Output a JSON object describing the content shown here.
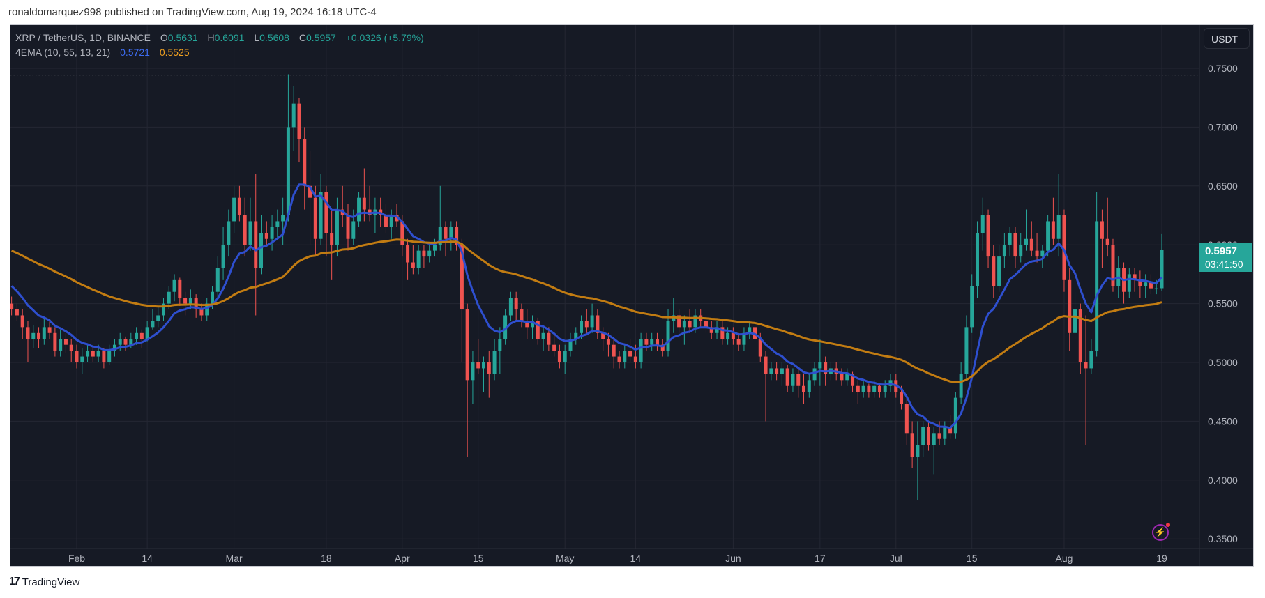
{
  "header": {
    "published": "ronaldomarquez998 published on TradingView.com, Aug 19, 2024 16:18 UTC-4"
  },
  "legend": {
    "symbol": "XRP / TetherUS, 1D, BINANCE",
    "o_label": "O",
    "o": "0.5631",
    "h_label": "H",
    "h": "0.6091",
    "l_label": "L",
    "l": "0.5608",
    "c_label": "C",
    "c": "0.5957",
    "change": "+0.0326 (+5.79%)",
    "ema_name": "4EMA (10, 55, 13, 21)",
    "ema_fast": "0.5721",
    "ema_slow": "0.5525"
  },
  "price_axis": {
    "currency": "USDT",
    "last_price": "0.5957",
    "countdown": "03:41:50"
  },
  "footer": {
    "brand": "TradingView"
  },
  "colors": {
    "up": "#26a69a",
    "down": "#ef5350",
    "ema_fast": "#2e4fcf",
    "ema_slow": "#c27c12",
    "background": "#161a25",
    "grid": "#242733"
  },
  "chart_data": {
    "type": "candlestick",
    "title": "XRP / TetherUS, 1D, BINANCE",
    "start_date": "2024-01-20",
    "ylim": [
      0.34,
      0.765
    ],
    "y_ticks": [
      "0.7500",
      "0.7000",
      "0.6500",
      "0.6000",
      "0.5500",
      "0.5000",
      "0.4500",
      "0.4000",
      "0.3500"
    ],
    "x_ticks": [
      {
        "label": "Feb",
        "date": "2024-02-01"
      },
      {
        "label": "14",
        "date": "2024-02-14"
      },
      {
        "label": "Mar",
        "date": "2024-03-01"
      },
      {
        "label": "18",
        "date": "2024-03-18"
      },
      {
        "label": "Apr",
        "date": "2024-04-01"
      },
      {
        "label": "15",
        "date": "2024-04-15"
      },
      {
        "label": "May",
        "date": "2024-05-01"
      },
      {
        "label": "14",
        "date": "2024-05-14"
      },
      {
        "label": "Jun",
        "date": "2024-06-01"
      },
      {
        "label": "17",
        "date": "2024-06-17"
      },
      {
        "label": "Jul",
        "date": "2024-07-01"
      },
      {
        "label": "15",
        "date": "2024-07-15"
      },
      {
        "label": "Aug",
        "date": "2024-08-01"
      },
      {
        "label": "19",
        "date": "2024-08-19"
      }
    ],
    "range_lines": [
      0.7443,
      0.383
    ],
    "ema_periods": [
      10,
      55
    ],
    "grid": true,
    "ohlc": [
      [
        0.55,
        0.556,
        0.54,
        0.545
      ],
      [
        0.545,
        0.55,
        0.535,
        0.54
      ],
      [
        0.54,
        0.545,
        0.52,
        0.53
      ],
      [
        0.53,
        0.535,
        0.5,
        0.52
      ],
      [
        0.52,
        0.532,
        0.512,
        0.525
      ],
      [
        0.525,
        0.53,
        0.512,
        0.52
      ],
      [
        0.52,
        0.538,
        0.515,
        0.53
      ],
      [
        0.53,
        0.535,
        0.52,
        0.525
      ],
      [
        0.525,
        0.53,
        0.505,
        0.51
      ],
      [
        0.51,
        0.528,
        0.505,
        0.52
      ],
      [
        0.52,
        0.525,
        0.508,
        0.515
      ],
      [
        0.515,
        0.52,
        0.5,
        0.51
      ],
      [
        0.51,
        0.515,
        0.495,
        0.5
      ],
      [
        0.5,
        0.512,
        0.49,
        0.505
      ],
      [
        0.505,
        0.515,
        0.5,
        0.51
      ],
      [
        0.51,
        0.514,
        0.5,
        0.505
      ],
      [
        0.505,
        0.515,
        0.5,
        0.51
      ],
      [
        0.51,
        0.512,
        0.495,
        0.5
      ],
      [
        0.5,
        0.515,
        0.498,
        0.51
      ],
      [
        0.51,
        0.52,
        0.505,
        0.515
      ],
      [
        0.515,
        0.525,
        0.51,
        0.52
      ],
      [
        0.52,
        0.522,
        0.51,
        0.515
      ],
      [
        0.515,
        0.525,
        0.512,
        0.52
      ],
      [
        0.52,
        0.53,
        0.515,
        0.525
      ],
      [
        0.525,
        0.528,
        0.512,
        0.52
      ],
      [
        0.52,
        0.535,
        0.518,
        0.53
      ],
      [
        0.53,
        0.545,
        0.528,
        0.535
      ],
      [
        0.535,
        0.548,
        0.53,
        0.54
      ],
      [
        0.54,
        0.555,
        0.535,
        0.55
      ],
      [
        0.55,
        0.565,
        0.545,
        0.56
      ],
      [
        0.56,
        0.575,
        0.552,
        0.57
      ],
      [
        0.57,
        0.572,
        0.548,
        0.555
      ],
      [
        0.555,
        0.56,
        0.54,
        0.55
      ],
      [
        0.55,
        0.562,
        0.545,
        0.555
      ],
      [
        0.555,
        0.558,
        0.538,
        0.545
      ],
      [
        0.545,
        0.55,
        0.535,
        0.54
      ],
      [
        0.54,
        0.555,
        0.535,
        0.55
      ],
      [
        0.55,
        0.565,
        0.545,
        0.56
      ],
      [
        0.56,
        0.59,
        0.555,
        0.58
      ],
      [
        0.58,
        0.615,
        0.57,
        0.6
      ],
      [
        0.6,
        0.63,
        0.59,
        0.62
      ],
      [
        0.62,
        0.65,
        0.61,
        0.64
      ],
      [
        0.64,
        0.65,
        0.62,
        0.625
      ],
      [
        0.625,
        0.64,
        0.59,
        0.6
      ],
      [
        0.6,
        0.64,
        0.595,
        0.62
      ],
      [
        0.62,
        0.66,
        0.54,
        0.58
      ],
      [
        0.58,
        0.625,
        0.575,
        0.61
      ],
      [
        0.61,
        0.62,
        0.6,
        0.605
      ],
      [
        0.605,
        0.625,
        0.595,
        0.615
      ],
      [
        0.615,
        0.63,
        0.605,
        0.62
      ],
      [
        0.62,
        0.64,
        0.6,
        0.625
      ],
      [
        0.625,
        0.745,
        0.62,
        0.7
      ],
      [
        0.7,
        0.735,
        0.68,
        0.72
      ],
      [
        0.72,
        0.725,
        0.67,
        0.69
      ],
      [
        0.69,
        0.7,
        0.63,
        0.65
      ],
      [
        0.65,
        0.68,
        0.6,
        0.64
      ],
      [
        0.64,
        0.65,
        0.59,
        0.605
      ],
      [
        0.605,
        0.66,
        0.6,
        0.645
      ],
      [
        0.645,
        0.65,
        0.59,
        0.61
      ],
      [
        0.61,
        0.63,
        0.57,
        0.6
      ],
      [
        0.6,
        0.64,
        0.59,
        0.63
      ],
      [
        0.63,
        0.65,
        0.615,
        0.625
      ],
      [
        0.625,
        0.635,
        0.595,
        0.605
      ],
      [
        0.605,
        0.63,
        0.6,
        0.62
      ],
      [
        0.62,
        0.645,
        0.615,
        0.64
      ],
      [
        0.64,
        0.665,
        0.62,
        0.63
      ],
      [
        0.63,
        0.65,
        0.62,
        0.625
      ],
      [
        0.625,
        0.64,
        0.61,
        0.63
      ],
      [
        0.63,
        0.64,
        0.615,
        0.625
      ],
      [
        0.625,
        0.635,
        0.61,
        0.615
      ],
      [
        0.615,
        0.63,
        0.605,
        0.625
      ],
      [
        0.625,
        0.635,
        0.615,
        0.62
      ],
      [
        0.62,
        0.625,
        0.59,
        0.6
      ],
      [
        0.6,
        0.605,
        0.57,
        0.585
      ],
      [
        0.585,
        0.6,
        0.575,
        0.58
      ],
      [
        0.58,
        0.6,
        0.575,
        0.595
      ],
      [
        0.595,
        0.6,
        0.58,
        0.59
      ],
      [
        0.59,
        0.6,
        0.585,
        0.595
      ],
      [
        0.595,
        0.605,
        0.59,
        0.6
      ],
      [
        0.6,
        0.65,
        0.595,
        0.615
      ],
      [
        0.615,
        0.62,
        0.59,
        0.605
      ],
      [
        0.605,
        0.62,
        0.595,
        0.615
      ],
      [
        0.615,
        0.62,
        0.595,
        0.6
      ],
      [
        0.6,
        0.605,
        0.5,
        0.545
      ],
      [
        0.545,
        0.55,
        0.42,
        0.485
      ],
      [
        0.485,
        0.51,
        0.465,
        0.5
      ],
      [
        0.5,
        0.52,
        0.49,
        0.495
      ],
      [
        0.495,
        0.505,
        0.475,
        0.5
      ],
      [
        0.5,
        0.51,
        0.47,
        0.49
      ],
      [
        0.49,
        0.52,
        0.485,
        0.51
      ],
      [
        0.51,
        0.53,
        0.49,
        0.52
      ],
      [
        0.52,
        0.545,
        0.515,
        0.54
      ],
      [
        0.54,
        0.56,
        0.535,
        0.555
      ],
      [
        0.555,
        0.56,
        0.535,
        0.545
      ],
      [
        0.545,
        0.55,
        0.53,
        0.535
      ],
      [
        0.535,
        0.545,
        0.52,
        0.53
      ],
      [
        0.53,
        0.54,
        0.52,
        0.535
      ],
      [
        0.535,
        0.538,
        0.515,
        0.52
      ],
      [
        0.52,
        0.53,
        0.51,
        0.525
      ],
      [
        0.525,
        0.53,
        0.51,
        0.515
      ],
      [
        0.515,
        0.525,
        0.505,
        0.51
      ],
      [
        0.51,
        0.515,
        0.495,
        0.5
      ],
      [
        0.5,
        0.515,
        0.49,
        0.51
      ],
      [
        0.51,
        0.525,
        0.505,
        0.52
      ],
      [
        0.52,
        0.53,
        0.515,
        0.525
      ],
      [
        0.525,
        0.54,
        0.52,
        0.535
      ],
      [
        0.535,
        0.545,
        0.525,
        0.53
      ],
      [
        0.53,
        0.55,
        0.525,
        0.54
      ],
      [
        0.54,
        0.545,
        0.52,
        0.525
      ],
      [
        0.525,
        0.53,
        0.51,
        0.52
      ],
      [
        0.52,
        0.525,
        0.505,
        0.515
      ],
      [
        0.515,
        0.52,
        0.495,
        0.505
      ],
      [
        0.505,
        0.51,
        0.495,
        0.5
      ],
      [
        0.5,
        0.515,
        0.495,
        0.51
      ],
      [
        0.51,
        0.52,
        0.5,
        0.505
      ],
      [
        0.505,
        0.515,
        0.495,
        0.5
      ],
      [
        0.5,
        0.525,
        0.495,
        0.52
      ],
      [
        0.52,
        0.525,
        0.51,
        0.515
      ],
      [
        0.515,
        0.525,
        0.51,
        0.52
      ],
      [
        0.52,
        0.525,
        0.51,
        0.515
      ],
      [
        0.515,
        0.52,
        0.505,
        0.51
      ],
      [
        0.51,
        0.545,
        0.505,
        0.535
      ],
      [
        0.535,
        0.555,
        0.525,
        0.54
      ],
      [
        0.54,
        0.545,
        0.525,
        0.53
      ],
      [
        0.53,
        0.54,
        0.515,
        0.535
      ],
      [
        0.535,
        0.545,
        0.525,
        0.53
      ],
      [
        0.53,
        0.545,
        0.525,
        0.54
      ],
      [
        0.54,
        0.545,
        0.53,
        0.535
      ],
      [
        0.535,
        0.54,
        0.525,
        0.53
      ],
      [
        0.53,
        0.535,
        0.52,
        0.525
      ],
      [
        0.525,
        0.535,
        0.52,
        0.53
      ],
      [
        0.53,
        0.535,
        0.515,
        0.52
      ],
      [
        0.52,
        0.53,
        0.515,
        0.525
      ],
      [
        0.525,
        0.53,
        0.515,
        0.52
      ],
      [
        0.52,
        0.525,
        0.51,
        0.515
      ],
      [
        0.515,
        0.53,
        0.51,
        0.525
      ],
      [
        0.525,
        0.535,
        0.52,
        0.53
      ],
      [
        0.53,
        0.535,
        0.515,
        0.52
      ],
      [
        0.52,
        0.525,
        0.5,
        0.505
      ],
      [
        0.505,
        0.51,
        0.45,
        0.49
      ],
      [
        0.49,
        0.5,
        0.485,
        0.495
      ],
      [
        0.495,
        0.5,
        0.485,
        0.49
      ],
      [
        0.49,
        0.5,
        0.48,
        0.495
      ],
      [
        0.495,
        0.498,
        0.475,
        0.48
      ],
      [
        0.48,
        0.495,
        0.475,
        0.49
      ],
      [
        0.49,
        0.495,
        0.47,
        0.48
      ],
      [
        0.48,
        0.49,
        0.465,
        0.475
      ],
      [
        0.475,
        0.49,
        0.47,
        0.485
      ],
      [
        0.485,
        0.5,
        0.48,
        0.495
      ],
      [
        0.495,
        0.52,
        0.48,
        0.5
      ],
      [
        0.5,
        0.505,
        0.48,
        0.49
      ],
      [
        0.49,
        0.5,
        0.485,
        0.495
      ],
      [
        0.495,
        0.5,
        0.485,
        0.49
      ],
      [
        0.49,
        0.495,
        0.48,
        0.485
      ],
      [
        0.485,
        0.495,
        0.48,
        0.49
      ],
      [
        0.49,
        0.492,
        0.475,
        0.48
      ],
      [
        0.48,
        0.485,
        0.465,
        0.475
      ],
      [
        0.475,
        0.485,
        0.47,
        0.48
      ],
      [
        0.48,
        0.482,
        0.47,
        0.475
      ],
      [
        0.475,
        0.485,
        0.47,
        0.48
      ],
      [
        0.48,
        0.482,
        0.47,
        0.475
      ],
      [
        0.475,
        0.485,
        0.47,
        0.48
      ],
      [
        0.48,
        0.49,
        0.475,
        0.485
      ],
      [
        0.485,
        0.49,
        0.47,
        0.475
      ],
      [
        0.475,
        0.48,
        0.46,
        0.465
      ],
      [
        0.465,
        0.47,
        0.43,
        0.44
      ],
      [
        0.44,
        0.45,
        0.41,
        0.42
      ],
      [
        0.42,
        0.45,
        0.383,
        0.43
      ],
      [
        0.43,
        0.45,
        0.42,
        0.445
      ],
      [
        0.445,
        0.45,
        0.425,
        0.43
      ],
      [
        0.43,
        0.445,
        0.405,
        0.44
      ],
      [
        0.44,
        0.45,
        0.43,
        0.435
      ],
      [
        0.435,
        0.45,
        0.43,
        0.445
      ],
      [
        0.445,
        0.455,
        0.435,
        0.44
      ],
      [
        0.44,
        0.475,
        0.435,
        0.47
      ],
      [
        0.47,
        0.5,
        0.465,
        0.49
      ],
      [
        0.49,
        0.54,
        0.485,
        0.53
      ],
      [
        0.53,
        0.575,
        0.525,
        0.565
      ],
      [
        0.565,
        0.62,
        0.555,
        0.61
      ],
      [
        0.61,
        0.64,
        0.595,
        0.625
      ],
      [
        0.625,
        0.63,
        0.58,
        0.59
      ],
      [
        0.59,
        0.6,
        0.555,
        0.565
      ],
      [
        0.565,
        0.6,
        0.56,
        0.59
      ],
      [
        0.59,
        0.61,
        0.58,
        0.6
      ],
      [
        0.6,
        0.615,
        0.59,
        0.61
      ],
      [
        0.61,
        0.615,
        0.58,
        0.59
      ],
      [
        0.59,
        0.61,
        0.585,
        0.6
      ],
      [
        0.6,
        0.63,
        0.595,
        0.605
      ],
      [
        0.605,
        0.62,
        0.59,
        0.595
      ],
      [
        0.595,
        0.61,
        0.585,
        0.59
      ],
      [
        0.59,
        0.6,
        0.58,
        0.595
      ],
      [
        0.595,
        0.625,
        0.59,
        0.62
      ],
      [
        0.62,
        0.64,
        0.6,
        0.605
      ],
      [
        0.605,
        0.66,
        0.59,
        0.625
      ],
      [
        0.625,
        0.63,
        0.56,
        0.57
      ],
      [
        0.57,
        0.58,
        0.51,
        0.525
      ],
      [
        0.525,
        0.56,
        0.52,
        0.545
      ],
      [
        0.545,
        0.55,
        0.49,
        0.5
      ],
      [
        0.5,
        0.54,
        0.43,
        0.495
      ],
      [
        0.495,
        0.52,
        0.49,
        0.51
      ],
      [
        0.51,
        0.645,
        0.505,
        0.62
      ],
      [
        0.62,
        0.63,
        0.58,
        0.605
      ],
      [
        0.605,
        0.64,
        0.59,
        0.6
      ],
      [
        0.6,
        0.605,
        0.56,
        0.565
      ],
      [
        0.565,
        0.59,
        0.555,
        0.58
      ],
      [
        0.58,
        0.585,
        0.55,
        0.56
      ],
      [
        0.56,
        0.58,
        0.555,
        0.575
      ],
      [
        0.575,
        0.58,
        0.56,
        0.57
      ],
      [
        0.57,
        0.578,
        0.555,
        0.565
      ],
      [
        0.565,
        0.575,
        0.555,
        0.568
      ],
      [
        0.568,
        0.575,
        0.558,
        0.563
      ],
      [
        0.563,
        0.57,
        0.558,
        0.563
      ],
      [
        0.5631,
        0.6091,
        0.5608,
        0.5957
      ]
    ]
  }
}
